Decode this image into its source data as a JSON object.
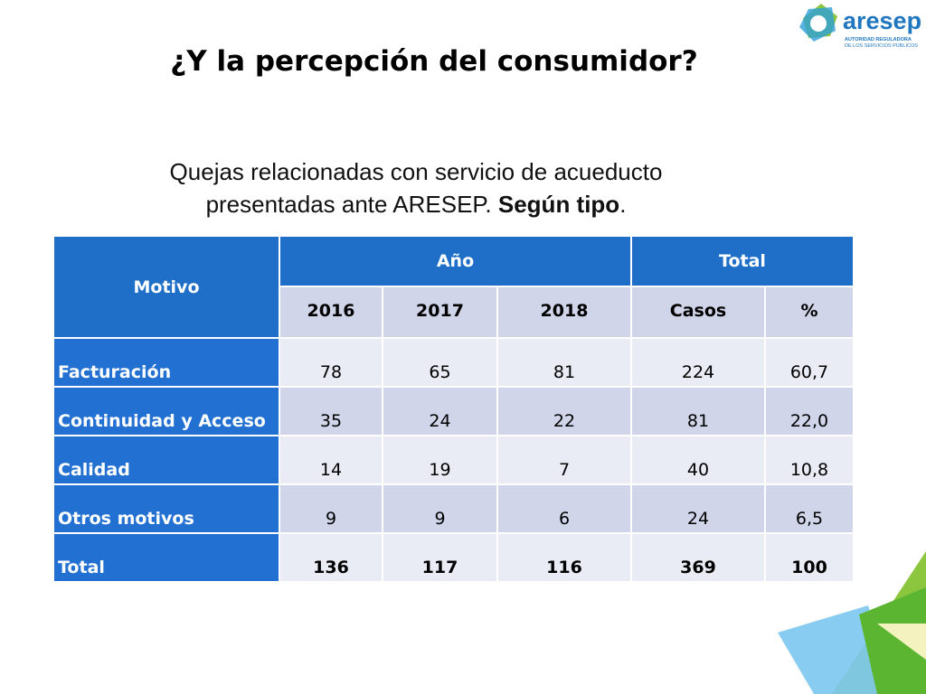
{
  "header": {
    "title": "¿Y la percepción del consumidor?",
    "logo": {
      "name": "aresep",
      "tagline": [
        "AUTORIDAD REGULADORA",
        "DE LOS SERVICIOS PÚBLICOS"
      ]
    }
  },
  "subtitle": {
    "line1": "Quejas relacionadas con servicio de acueducto",
    "line2": "presentadas ante ARESEP.",
    "emphasis": "Según tipo",
    "end": "."
  },
  "table": {
    "head": [
      "Motivo",
      "Año",
      "Total"
    ],
    "subhead": [
      "2016",
      "2017",
      "2018",
      "Casos",
      "%"
    ],
    "rows": [
      [
        "Facturación",
        "78",
        "65",
        "81",
        "224",
        "60,7"
      ],
      [
        "Continuidad y Acceso",
        "35",
        "24",
        "22",
        "81",
        "22,0"
      ],
      [
        "Calidad",
        "14",
        "19",
        "7",
        "40",
        "10,8"
      ],
      [
        "Otros motivos",
        "9",
        "9",
        "6",
        "24",
        "6,5"
      ],
      [
        "Total",
        "136",
        "117",
        "116",
        "369",
        "100"
      ]
    ]
  }
}
